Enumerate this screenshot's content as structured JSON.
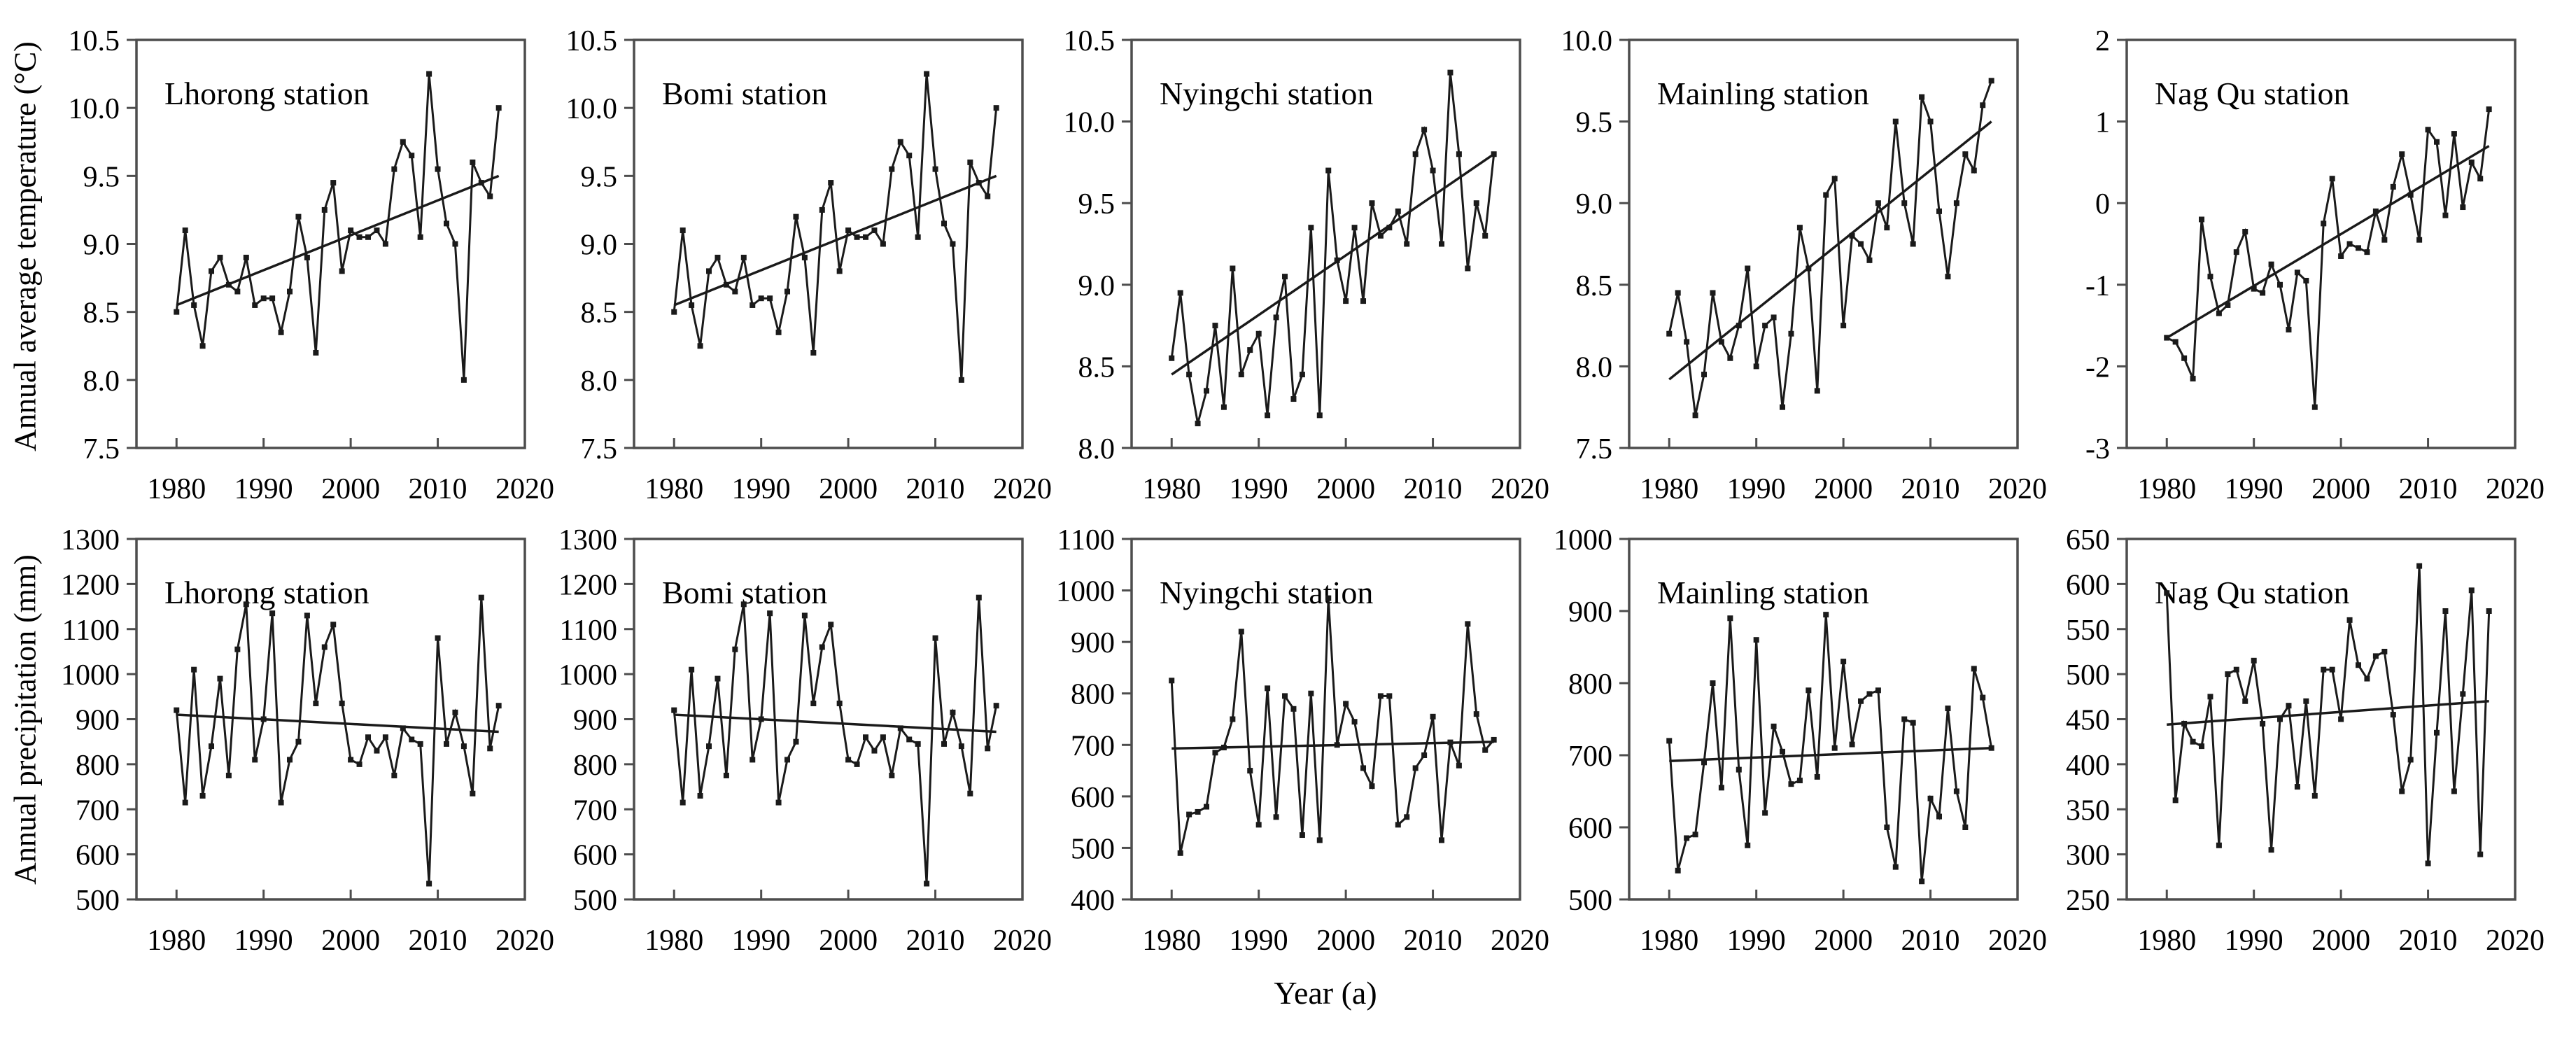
{
  "figure": {
    "row1_ylabel": "Annual average temperature (°C)",
    "row2_ylabel": "Annual precipitation (mm)",
    "xlabel": "Year (a)",
    "line_color": "#1a1a1a",
    "axis_color": "#4d4d4d"
  },
  "chart_data": [
    {
      "id": "lhorong-temperature",
      "type": "line",
      "row": 0,
      "col": 0,
      "title": "Lhorong station",
      "ylabel": "Annual average temperature (°C)",
      "grid": false,
      "legend": "none",
      "ylim": [
        7.5,
        10.5
      ],
      "ytick_step": 0.5,
      "ydecimals": 1,
      "xlim": [
        1975.4,
        2020
      ],
      "xticks": [
        1980,
        1990,
        2000,
        2010,
        2020
      ],
      "x_start": 1980,
      "x_step": 1,
      "values": [
        8.5,
        9.1,
        8.55,
        8.25,
        8.8,
        8.9,
        8.7,
        8.65,
        8.9,
        8.55,
        8.6,
        8.6,
        8.35,
        8.65,
        9.2,
        8.9,
        8.2,
        9.25,
        9.45,
        8.8,
        9.1,
        9.05,
        9.05,
        9.1,
        9.0,
        9.55,
        9.75,
        9.65,
        9.05,
        10.25,
        9.55,
        9.15,
        9.0,
        8.0,
        9.6,
        9.45,
        9.35,
        10.0
      ],
      "trend": {
        "x": [
          1980,
          2017
        ],
        "y": [
          8.55,
          9.5
        ]
      }
    },
    {
      "id": "bomi-temperature",
      "type": "line",
      "row": 0,
      "col": 1,
      "title": "Bomi station",
      "ylabel": "Annual average temperature (°C)",
      "grid": false,
      "legend": "none",
      "ylim": [
        7.5,
        10.5
      ],
      "ytick_step": 0.5,
      "ydecimals": 1,
      "xlim": [
        1975.4,
        2020
      ],
      "xticks": [
        1980,
        1990,
        2000,
        2010,
        2020
      ],
      "x_start": 1980,
      "x_step": 1,
      "values": [
        8.5,
        9.1,
        8.55,
        8.25,
        8.8,
        8.9,
        8.7,
        8.65,
        8.9,
        8.55,
        8.6,
        8.6,
        8.35,
        8.65,
        9.2,
        8.9,
        8.2,
        9.25,
        9.45,
        8.8,
        9.1,
        9.05,
        9.05,
        9.1,
        9.0,
        9.55,
        9.75,
        9.65,
        9.05,
        10.25,
        9.55,
        9.15,
        9.0,
        8.0,
        9.6,
        9.45,
        9.35,
        10.0
      ],
      "trend": {
        "x": [
          1980,
          2017
        ],
        "y": [
          8.55,
          9.5
        ]
      }
    },
    {
      "id": "nyingchi-temperature",
      "type": "line",
      "row": 0,
      "col": 2,
      "title": "Nyingchi station",
      "ylabel": "Annual average temperature (°C)",
      "grid": false,
      "legend": "none",
      "ylim": [
        8.0,
        10.5
      ],
      "ytick_step": 0.5,
      "ydecimals": 1,
      "xlim": [
        1975.4,
        2020
      ],
      "xticks": [
        1980,
        1990,
        2000,
        2010,
        2020
      ],
      "x_start": 1980,
      "x_step": 1,
      "values": [
        8.55,
        8.95,
        8.45,
        8.15,
        8.35,
        8.75,
        8.25,
        9.1,
        8.45,
        8.6,
        8.7,
        8.2,
        8.8,
        9.05,
        8.3,
        8.45,
        9.35,
        8.2,
        9.7,
        9.15,
        8.9,
        9.35,
        8.9,
        9.5,
        9.3,
        9.35,
        9.45,
        9.25,
        9.8,
        9.95,
        9.7,
        9.25,
        10.3,
        9.8,
        9.1,
        9.5,
        9.3,
        9.8
      ],
      "trend": {
        "x": [
          1980,
          2017
        ],
        "y": [
          8.45,
          9.8
        ]
      }
    },
    {
      "id": "mainling-temperature",
      "type": "line",
      "row": 0,
      "col": 3,
      "title": "Mainling station",
      "ylabel": "Annual average temperature (°C)",
      "grid": false,
      "legend": "none",
      "ylim": [
        7.5,
        10.0
      ],
      "ytick_step": 0.5,
      "ydecimals": 1,
      "xlim": [
        1975.4,
        2020
      ],
      "xticks": [
        1980,
        1990,
        2000,
        2010,
        2020
      ],
      "x_start": 1980,
      "x_step": 1,
      "values": [
        8.2,
        8.45,
        8.15,
        7.7,
        7.95,
        8.45,
        8.15,
        8.05,
        8.25,
        8.6,
        8.0,
        8.25,
        8.3,
        7.75,
        8.2,
        8.85,
        8.6,
        7.85,
        9.05,
        9.15,
        8.25,
        8.8,
        8.75,
        8.65,
        9.0,
        8.85,
        9.5,
        9.0,
        8.75,
        9.65,
        9.5,
        8.95,
        8.55,
        9.0,
        9.3,
        9.2,
        9.6,
        9.75
      ],
      "trend": {
        "x": [
          1980,
          2017
        ],
        "y": [
          7.92,
          9.5
        ]
      }
    },
    {
      "id": "nagqu-temperature",
      "type": "line",
      "row": 0,
      "col": 4,
      "title": "Nag Qu station",
      "ylabel": "Annual average temperature (°C)",
      "grid": false,
      "legend": "none",
      "ylim": [
        -3,
        2
      ],
      "ytick_step": 1,
      "ydecimals": 0,
      "xlim": [
        1975.4,
        2020
      ],
      "xticks": [
        1980,
        1990,
        2000,
        2010,
        2020
      ],
      "x_start": 1980,
      "x_step": 1,
      "values": [
        -1.65,
        -1.7,
        -1.9,
        -2.15,
        -0.2,
        -0.9,
        -1.35,
        -1.25,
        -0.6,
        -0.35,
        -1.05,
        -1.1,
        -0.75,
        -1.0,
        -1.55,
        -0.85,
        -0.95,
        -2.5,
        -0.25,
        0.3,
        -0.65,
        -0.5,
        -0.55,
        -0.6,
        -0.1,
        -0.45,
        0.2,
        0.6,
        0.1,
        -0.45,
        0.9,
        0.75,
        -0.15,
        0.85,
        -0.05,
        0.5,
        0.3,
        1.15
      ],
      "trend": {
        "x": [
          1980,
          2017
        ],
        "y": [
          -1.65,
          0.7
        ]
      }
    },
    {
      "id": "lhorong-precipitation",
      "type": "line",
      "row": 1,
      "col": 0,
      "title": "Lhorong station",
      "ylabel": "Annual precipitation (mm)",
      "grid": false,
      "legend": "none",
      "ylim": [
        500,
        1300
      ],
      "ytick_step": 100,
      "ydecimals": 0,
      "xlim": [
        1975.4,
        2020
      ],
      "xticks": [
        1980,
        1990,
        2000,
        2010,
        2020
      ],
      "x_start": 1980,
      "x_step": 1,
      "values": [
        920,
        715,
        1010,
        730,
        840,
        990,
        775,
        1055,
        1155,
        810,
        900,
        1135,
        715,
        810,
        850,
        1130,
        935,
        1060,
        1110,
        935,
        810,
        800,
        860,
        830,
        860,
        775,
        880,
        855,
        845,
        535,
        1080,
        845,
        915,
        840,
        735,
        1170,
        835,
        930
      ],
      "trend": {
        "x": [
          1980,
          2017
        ],
        "y": [
          910,
          872
        ]
      }
    },
    {
      "id": "bomi-precipitation",
      "type": "line",
      "row": 1,
      "col": 1,
      "title": "Bomi station",
      "ylabel": "Annual precipitation (mm)",
      "grid": false,
      "legend": "none",
      "ylim": [
        500,
        1300
      ],
      "ytick_step": 100,
      "ydecimals": 0,
      "xlim": [
        1975.4,
        2020
      ],
      "xticks": [
        1980,
        1990,
        2000,
        2010,
        2020
      ],
      "x_start": 1980,
      "x_step": 1,
      "values": [
        920,
        715,
        1010,
        730,
        840,
        990,
        775,
        1055,
        1155,
        810,
        900,
        1135,
        715,
        810,
        850,
        1130,
        935,
        1060,
        1110,
        935,
        810,
        800,
        860,
        830,
        860,
        775,
        880,
        855,
        845,
        535,
        1080,
        845,
        915,
        840,
        735,
        1170,
        835,
        930
      ],
      "trend": {
        "x": [
          1980,
          2017
        ],
        "y": [
          910,
          872
        ]
      }
    },
    {
      "id": "nyingchi-precipitation",
      "type": "line",
      "row": 1,
      "col": 2,
      "title": "Nyingchi station",
      "ylabel": "Annual precipitation (mm)",
      "grid": false,
      "legend": "none",
      "ylim": [
        400,
        1100
      ],
      "ytick_step": 100,
      "ydecimals": 0,
      "xlim": [
        1975.4,
        2020
      ],
      "xticks": [
        1980,
        1990,
        2000,
        2010,
        2020
      ],
      "x_start": 1980,
      "x_step": 1,
      "values": [
        825,
        490,
        565,
        570,
        580,
        685,
        695,
        750,
        920,
        650,
        545,
        810,
        560,
        795,
        770,
        525,
        800,
        515,
        985,
        700,
        780,
        745,
        655,
        620,
        795,
        795,
        545,
        560,
        655,
        680,
        755,
        515,
        705,
        660,
        935,
        760,
        690,
        710
      ],
      "trend": {
        "x": [
          1980,
          2017
        ],
        "y": [
          693,
          706
        ]
      }
    },
    {
      "id": "mainling-precipitation",
      "type": "line",
      "row": 1,
      "col": 3,
      "title": "Mainling station",
      "ylabel": "Annual precipitation (mm)",
      "grid": false,
      "legend": "none",
      "ylim": [
        500,
        1000
      ],
      "ytick_step": 100,
      "ydecimals": 0,
      "xlim": [
        1975.4,
        2020
      ],
      "xticks": [
        1980,
        1990,
        2000,
        2010,
        2020
      ],
      "x_start": 1980,
      "x_step": 1,
      "values": [
        720,
        540,
        585,
        590,
        690,
        800,
        655,
        890,
        680,
        575,
        860,
        620,
        740,
        705,
        660,
        665,
        790,
        670,
        895,
        710,
        830,
        715,
        775,
        785,
        790,
        600,
        545,
        750,
        745,
        525,
        640,
        615,
        765,
        650,
        600,
        820,
        780,
        710
      ],
      "trend": {
        "x": [
          1980,
          2017
        ],
        "y": [
          692,
          710
        ]
      }
    },
    {
      "id": "nagqu-precipitation",
      "type": "line",
      "row": 1,
      "col": 4,
      "title": "Nag Qu station",
      "ylabel": "Annual precipitation (mm)",
      "grid": false,
      "legend": "none",
      "ylim": [
        250,
        650
      ],
      "ytick_step": 50,
      "ydecimals": 0,
      "xlim": [
        1975.4,
        2020
      ],
      "xticks": [
        1980,
        1990,
        2000,
        2010,
        2020
      ],
      "x_start": 1980,
      "x_step": 1,
      "values": [
        590,
        360,
        445,
        425,
        420,
        475,
        310,
        500,
        505,
        470,
        515,
        445,
        305,
        450,
        465,
        375,
        470,
        365,
        505,
        505,
        450,
        560,
        510,
        495,
        520,
        525,
        455,
        370,
        405,
        620,
        290,
        435,
        570,
        370,
        478,
        593,
        300,
        570
      ],
      "trend": {
        "x": [
          1980,
          2017
        ],
        "y": [
          444,
          470
        ]
      }
    }
  ]
}
